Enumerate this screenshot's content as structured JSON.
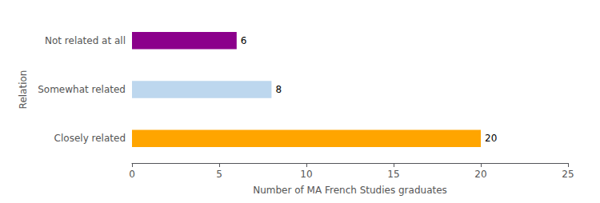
{
  "chart_data": {
    "type": "bar",
    "orientation": "horizontal",
    "categories": [
      "Closely related",
      "Somewhat related",
      "Not related at all"
    ],
    "values": [
      20,
      8,
      6
    ],
    "colors": [
      "#FFA500",
      "#BDD7EE",
      "#8B008B"
    ],
    "xlabel": "Number of MA French Studies graduates",
    "ylabel": "Relation",
    "xlim": [
      0,
      25
    ],
    "xticks": [
      0,
      5,
      10,
      15,
      20,
      25
    ],
    "data_labels": true,
    "grid": false
  }
}
